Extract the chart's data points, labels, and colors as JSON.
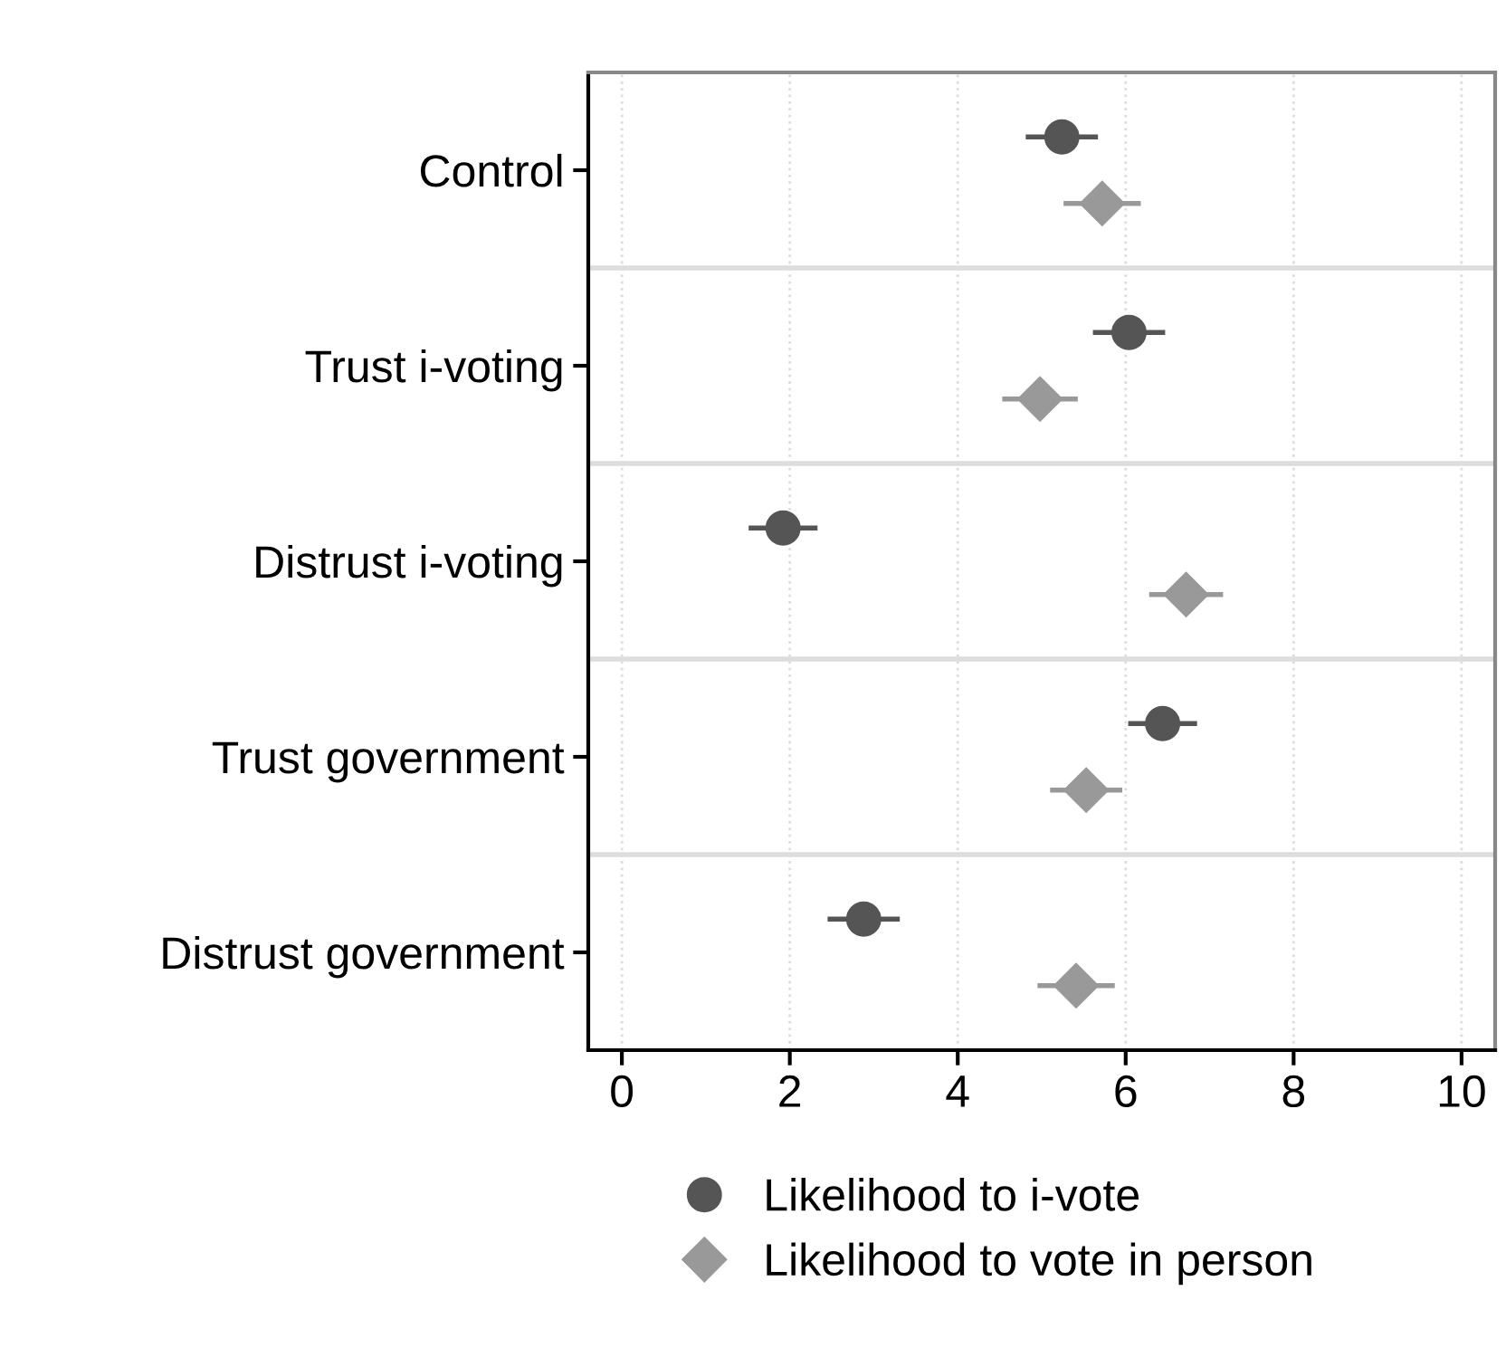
{
  "chart_data": {
    "type": "scatter",
    "orientation": "horizontal",
    "categories": [
      "Control",
      "Trust i-voting",
      "Distrust i-voting",
      "Trust government",
      "Distrust government"
    ],
    "series": [
      {
        "name": "Likelihood to i-vote",
        "color": "#555555",
        "marker": "circle",
        "values": [
          5.24,
          6.04,
          1.92,
          6.44,
          2.88
        ],
        "errors": [
          0.43,
          0.43,
          0.41,
          0.41,
          0.43
        ]
      },
      {
        "name": "Likelihood to vote in person",
        "color": "#999999",
        "marker": "diamond",
        "values": [
          5.72,
          4.98,
          6.72,
          5.53,
          5.41
        ],
        "errors": [
          0.46,
          0.45,
          0.44,
          0.43,
          0.46
        ]
      }
    ],
    "xlim": [
      -0.4,
      10.4
    ],
    "xticks": [
      0,
      2,
      4,
      6,
      8,
      10
    ],
    "grid": "x",
    "legend": "bottom"
  }
}
